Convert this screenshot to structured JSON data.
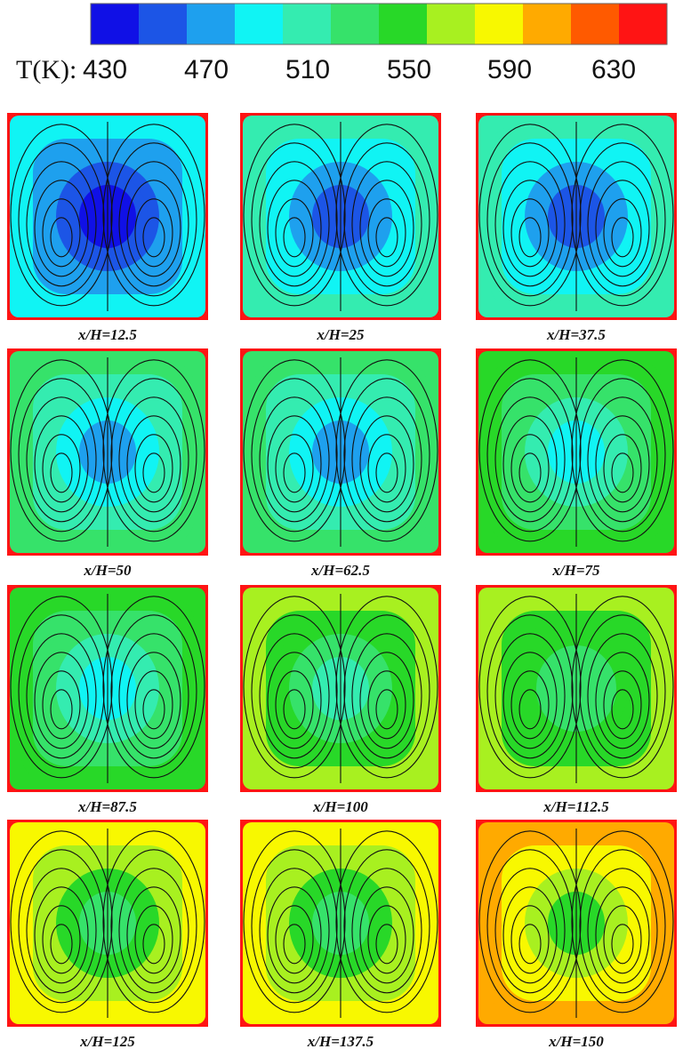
{
  "colorbar": {
    "label": "T(K):",
    "ticks": [
      "430",
      "470",
      "510",
      "550",
      "590",
      "630"
    ],
    "colors": [
      "#1010e6",
      "#1c55e6",
      "#1ea0ee",
      "#10f4f4",
      "#34ecb0",
      "#36e26a",
      "#28d828",
      "#a8f020",
      "#f8f800",
      "#ffaa00",
      "#ff5a00",
      "#ff1414"
    ]
  },
  "panels": [
    {
      "caption": "x/H=12.5"
    },
    {
      "caption": "x/H=25"
    },
    {
      "caption": "x/H=37.5"
    },
    {
      "caption": "x/H=50"
    },
    {
      "caption": "x/H=62.5"
    },
    {
      "caption": "x/H=75"
    },
    {
      "caption": "x/H=87.5"
    },
    {
      "caption": "x/H=100"
    },
    {
      "caption": "x/H=112.5"
    },
    {
      "caption": "x/H=125"
    },
    {
      "caption": "x/H=137.5"
    },
    {
      "caption": "x/H=150"
    }
  ]
}
